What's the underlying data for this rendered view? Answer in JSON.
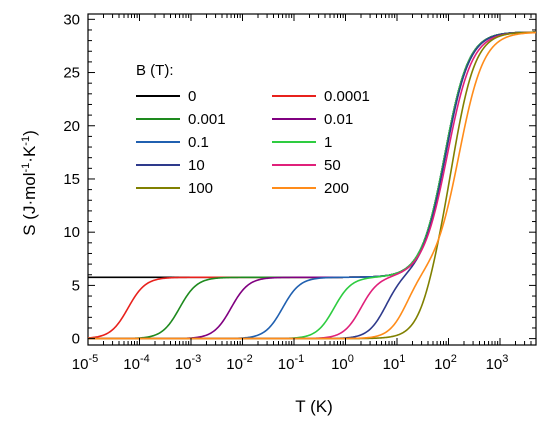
{
  "chart_data": {
    "type": "line",
    "xlabel": "T (K)",
    "ylabel": "S (J·mol⁻¹·K⁻¹)",
    "ylabel_parts": {
      "base": "S (J·mol",
      "sup1": "-1",
      "mid": "·K",
      "sup2": "-1",
      "end": ")"
    },
    "x_scale": "log",
    "xlim": [
      1e-05,
      5000
    ],
    "ylim": [
      -0.6,
      30.5
    ],
    "x_ticks": [
      {
        "value": 1e-05,
        "base": "10",
        "exp": "-5"
      },
      {
        "value": 0.0001,
        "base": "10",
        "exp": "-4"
      },
      {
        "value": 0.001,
        "base": "10",
        "exp": "-3"
      },
      {
        "value": 0.01,
        "base": "10",
        "exp": "-2"
      },
      {
        "value": 0.1,
        "base": "10",
        "exp": "-1"
      },
      {
        "value": 1,
        "base": "10",
        "exp": "0"
      },
      {
        "value": 10,
        "base": "10",
        "exp": "1"
      },
      {
        "value": 100,
        "base": "10",
        "exp": "2"
      },
      {
        "value": 1000,
        "base": "10",
        "exp": "3"
      }
    ],
    "y_ticks": [
      0,
      5,
      10,
      15,
      20,
      25,
      30
    ],
    "grid": false,
    "legend": {
      "title": "B (T):",
      "placement": "top-left",
      "columns": 2
    },
    "series": [
      {
        "name": "0",
        "color": "#000000",
        "low_transition_T": null,
        "high_transition_T": 85,
        "high_width": 0.23
      },
      {
        "name": "0.0001",
        "color": "#e8211c",
        "low_transition_T": 6e-05,
        "high_transition_T": 85,
        "high_width": 0.23
      },
      {
        "name": "0.001",
        "color": "#1e8a1e",
        "low_transition_T": 0.0006,
        "high_transition_T": 85,
        "high_width": 0.23
      },
      {
        "name": "0.01",
        "color": "#800080",
        "low_transition_T": 0.006,
        "high_transition_T": 85,
        "high_width": 0.23
      },
      {
        "name": "0.1",
        "color": "#2060b0",
        "low_transition_T": 0.06,
        "high_transition_T": 85,
        "high_width": 0.23
      },
      {
        "name": "1",
        "color": "#2ecc40",
        "low_transition_T": 0.6,
        "high_transition_T": 85,
        "high_width": 0.23
      },
      {
        "name": "10",
        "color": "#2e3a8c",
        "low_transition_T": 6,
        "high_transition_T": 88,
        "high_width": 0.23
      },
      {
        "name": "50",
        "color": "#e0207a",
        "low_transition_T": 2,
        "high_transition_T": 95,
        "high_width": 0.24
      },
      {
        "name": "100",
        "color": "#808000",
        "low_transition_T": 45,
        "high_transition_T": 125,
        "high_width": 0.22
      },
      {
        "name": "200",
        "color": "#ff8c1a",
        "low_transition_T": 15,
        "high_transition_T": 160,
        "high_width": 0.24
      }
    ],
    "plateau_values": {
      "low": 5.76,
      "high": 28.8
    }
  }
}
